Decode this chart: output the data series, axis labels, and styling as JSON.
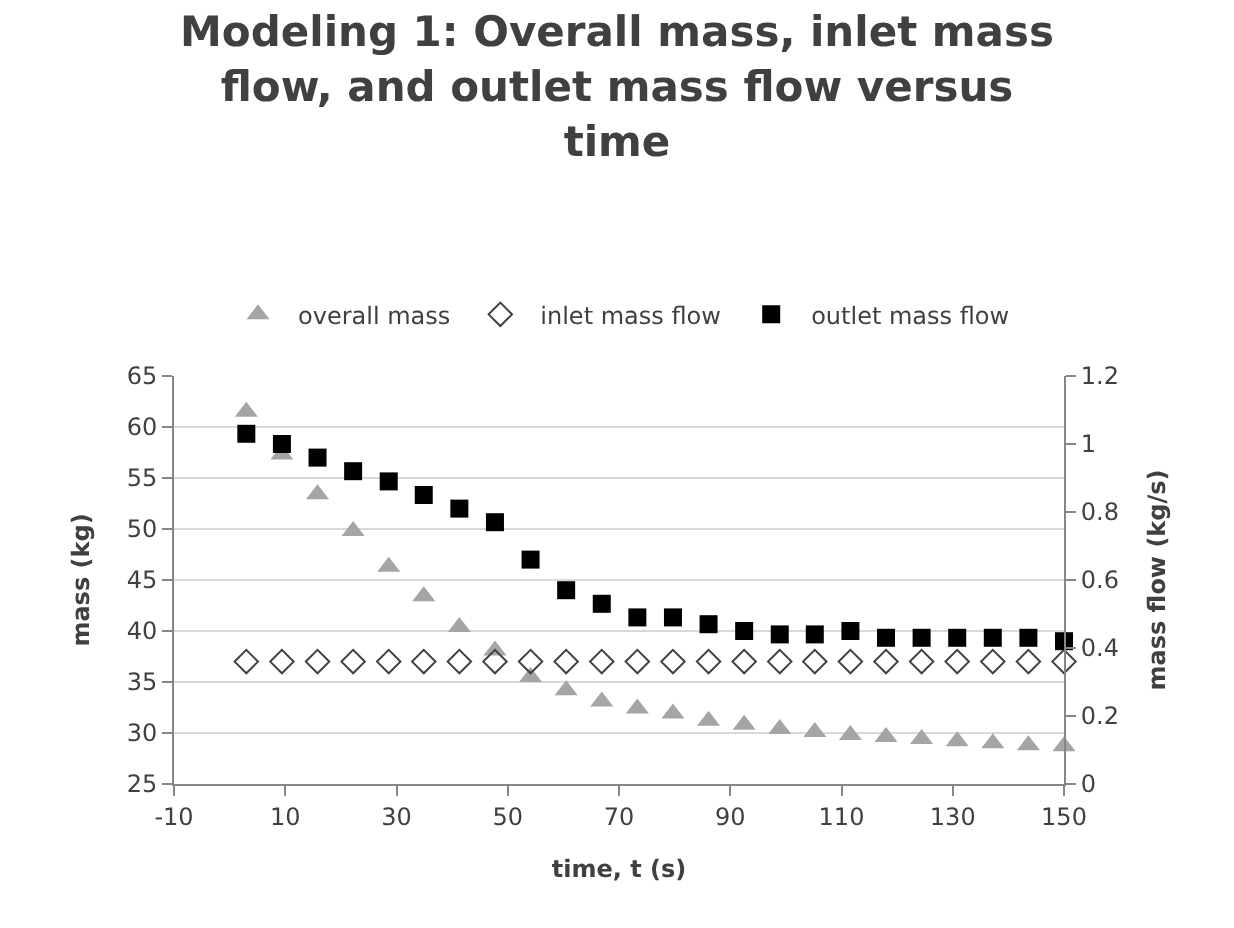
{
  "chart_data": {
    "type": "scatter",
    "title": "Modeling 1: Overall mass, inlet mass flow, and outlet mass flow versus time",
    "xlabel": "time, t (s)",
    "ylabel": "mass (kg)",
    "y2label": "mass flow (kg/s)",
    "x": [
      3.0,
      9.4,
      15.8,
      22.2,
      28.6,
      34.9,
      41.3,
      47.7,
      54.1,
      60.5,
      66.9,
      73.3,
      79.7,
      86.1,
      92.5,
      98.9,
      105.2,
      111.6,
      118.0,
      124.4,
      130.8,
      137.2,
      143.6,
      150.0
    ],
    "series": [
      {
        "name": "overall mass",
        "color": "#a5a5a5",
        "marker": "triangle",
        "values": [
          61.5,
          57.3,
          53.4,
          49.8,
          46.3,
          43.4,
          40.4,
          38.1,
          35.5,
          34.2,
          33.1,
          32.4,
          31.9,
          31.2,
          30.8,
          30.4,
          30.1,
          29.8,
          29.6,
          29.4,
          29.2,
          29.0,
          28.8,
          28.7
        ]
      },
      {
        "name": "inlet mass flow",
        "color": "#404040",
        "marker": "diamond",
        "axis": "y2",
        "values": [
          0.36,
          0.36,
          0.36,
          0.36,
          0.36,
          0.36,
          0.36,
          0.36,
          0.36,
          0.36,
          0.36,
          0.36,
          0.36,
          0.36,
          0.36,
          0.36,
          0.36,
          0.36,
          0.36,
          0.36,
          0.36,
          0.36,
          0.36,
          0.36
        ]
      },
      {
        "name": "outlet mass flow",
        "color": "#000000",
        "marker": "square",
        "axis": "y2",
        "values": [
          1.03,
          1.0,
          0.96,
          0.92,
          0.89,
          0.85,
          0.81,
          0.77,
          0.66,
          0.57,
          0.53,
          0.49,
          0.49,
          0.47,
          0.45,
          0.44,
          0.44,
          0.45,
          0.43,
          0.43,
          0.43,
          0.43,
          0.43,
          0.42
        ]
      }
    ],
    "xlim": [
      -10,
      150
    ],
    "xticks": [
      -10,
      10,
      30,
      50,
      70,
      90,
      110,
      130,
      150
    ],
    "ylim": [
      25,
      65
    ],
    "yticks": [
      25,
      30,
      35,
      40,
      45,
      50,
      55,
      60,
      65
    ],
    "y2lim": [
      0,
      1.2
    ],
    "y2ticks": [
      0,
      0.2,
      0.4,
      0.6,
      0.8,
      1,
      1.2
    ],
    "grid": "y",
    "legend": "top"
  }
}
